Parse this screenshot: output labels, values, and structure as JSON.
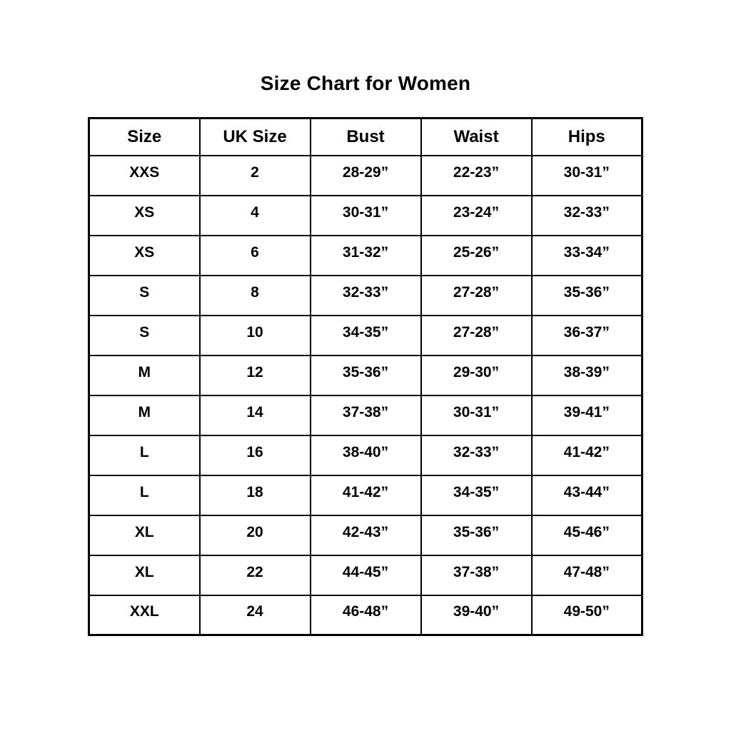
{
  "title": "Size Chart for Women",
  "chart_data": {
    "type": "table",
    "title": "Size Chart for Women",
    "columns": [
      "Size",
      "UK Size",
      "Bust",
      "Waist",
      "Hips"
    ],
    "rows": [
      [
        "XXS",
        "2",
        "28-29”",
        "22-23”",
        "30-31”"
      ],
      [
        "XS",
        "4",
        "30-31”",
        "23-24”",
        "32-33”"
      ],
      [
        "XS",
        "6",
        "31-32”",
        "25-26”",
        "33-34”"
      ],
      [
        "S",
        "8",
        "32-33”",
        "27-28”",
        "35-36”"
      ],
      [
        "S",
        "10",
        "34-35”",
        "27-28”",
        "36-37”"
      ],
      [
        "M",
        "12",
        "35-36”",
        "29-30”",
        "38-39”"
      ],
      [
        "M",
        "14",
        "37-38”",
        "30-31”",
        "39-41”"
      ],
      [
        "L",
        "16",
        "38-40”",
        "32-33”",
        "41-42”"
      ],
      [
        "L",
        "18",
        "41-42”",
        "34-35”",
        "43-44”"
      ],
      [
        "XL",
        "20",
        "42-43”",
        "35-36”",
        "45-46”"
      ],
      [
        "XL",
        "22",
        "44-45”",
        "37-38”",
        "47-48”"
      ],
      [
        "XXL",
        "24",
        "46-48”",
        "39-40”",
        "49-50”"
      ]
    ]
  },
  "colors": {
    "background": "#ffffff",
    "border": "#000000",
    "text": "#000000"
  }
}
